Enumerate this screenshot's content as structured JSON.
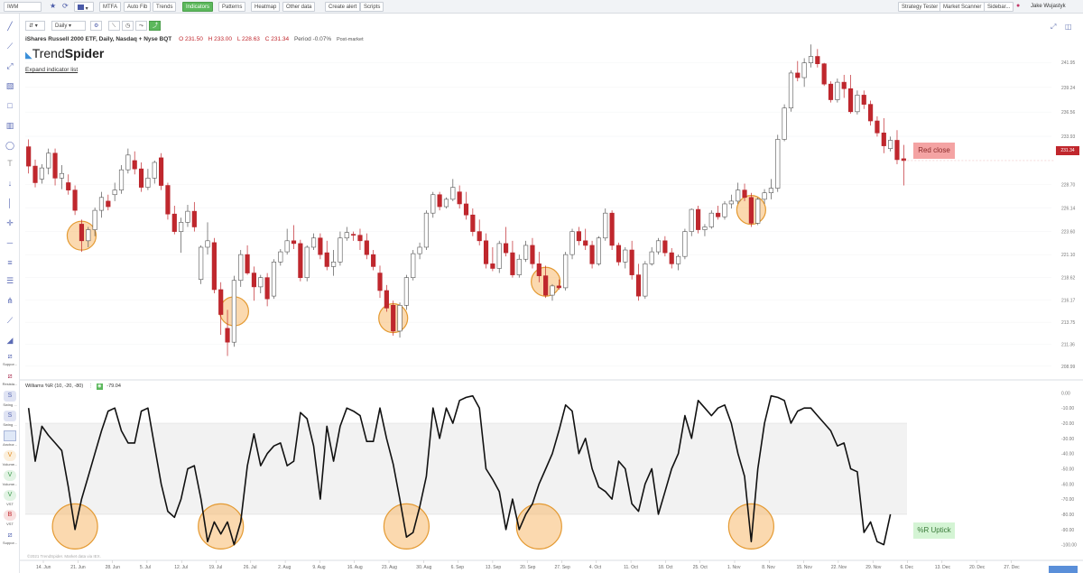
{
  "topbar": {
    "symbol": "IWM",
    "buttons": [
      "MTFA",
      "Auto Fib",
      "Trends",
      "Indicators",
      "Patterns",
      "Heatmap",
      "Other data",
      "Create alert",
      "Scripts"
    ],
    "right_buttons": [
      "Strategy Tester",
      "Market Scanner",
      "Sidebar..."
    ],
    "user": "Jake Wujastyk",
    "accent": "#5cb85c"
  },
  "toolbar": {
    "timeframe": "Daily"
  },
  "chart_header": {
    "title": "iShares Russell 2000 ETF, Daily, Nasdaq + Nyse BQT",
    "open": "O 231.50",
    "high": "H 233.00",
    "low": "L 228.63",
    "close": "C 231.34",
    "period": "Period -0.07%",
    "session": "Post-market",
    "logo_a": "Trend",
    "logo_b": "Spider",
    "expand": "Expand indicator list"
  },
  "indicator": {
    "label": "Williams %R (10, -20, -80)",
    "value": "-79.04"
  },
  "annotations": {
    "price_callout": "Red close",
    "wr_callout": "%R Uptick",
    "last_price": "231.34"
  },
  "watermark": "©2021 TrendSpider. Market data via IEX.",
  "sidebar_labels": [
    "Suppor...",
    "Resista...",
    "Swing ...",
    "Swing ...",
    "Anchor...",
    "Volume...",
    "Volume...",
    "VST",
    "VST",
    "Suppor..."
  ],
  "sidebar_letters": [
    "S",
    "S",
    "V",
    "V",
    "V",
    "B"
  ],
  "chart_data": [
    {
      "type": "candlestick",
      "title": "iShares Russell 2000 ETF, Daily, Nasdaq + Nyse BQT",
      "y_ticks": [
        241.95,
        239.24,
        236.56,
        233.93,
        228.7,
        226.14,
        223.6,
        221.1,
        218.62,
        216.17,
        213.75,
        211.36,
        208.99
      ],
      "x_ticks": [
        "14. Jun",
        "21. Jun",
        "28. Jun",
        "5. Jul",
        "12. Jul",
        "19. Jul",
        "26. Jul",
        "2. Aug",
        "9. Aug",
        "16. Aug",
        "23. Aug",
        "30. Aug",
        "6. Sep",
        "13. Sep",
        "20. Sep",
        "27. Sep",
        "4. Oct",
        "11. Oct",
        "18. Oct",
        "25. Oct",
        "1. Nov",
        "8. Nov",
        "15. Nov",
        "22. Nov",
        "29. Nov",
        "6. Dec",
        "13. Dec",
        "20. Dec",
        "27. Dec"
      ],
      "ylim": [
        207.8,
        245.0
      ],
      "up_color": "#ffffff",
      "down_color": "#c0272d",
      "candles": [
        [
          232.8,
          233.6,
          229.9,
          230.7
        ],
        [
          230.7,
          231.4,
          228.4,
          228.9
        ],
        [
          229.3,
          230.9,
          228.8,
          230.5
        ],
        [
          230.5,
          232.6,
          229.8,
          232.1
        ],
        [
          232.1,
          232.6,
          228.6,
          229.4
        ],
        [
          229.4,
          230.8,
          228.2,
          229.9
        ],
        [
          228.9,
          229.8,
          227.6,
          228.1
        ],
        [
          228.1,
          228.6,
          225.4,
          225.9
        ],
        [
          224.4,
          224.9,
          221.4,
          222.6
        ],
        [
          222.6,
          224.1,
          221.9,
          223.8
        ],
        [
          223.8,
          226.2,
          223.1,
          225.9
        ],
        [
          225.9,
          227.9,
          225.1,
          227.3
        ],
        [
          226.9,
          227.6,
          225.9,
          226.3
        ],
        [
          227.6,
          228.9,
          226.9,
          228.1
        ],
        [
          228.1,
          230.8,
          227.7,
          230.3
        ],
        [
          230.3,
          232.6,
          229.9,
          231.9
        ],
        [
          231.3,
          232.3,
          229.8,
          230.4
        ],
        [
          230.4,
          231.1,
          227.9,
          228.4
        ],
        [
          228.4,
          230.4,
          228.1,
          229.4
        ],
        [
          229.4,
          231.3,
          228.8,
          231.1
        ],
        [
          231.6,
          232.1,
          228.1,
          228.6
        ],
        [
          228.6,
          228.9,
          224.9,
          225.5
        ],
        [
          225.5,
          226.4,
          223.3,
          223.6
        ],
        [
          223.6,
          225.1,
          221.3,
          224.6
        ],
        [
          224.6,
          226.5,
          224.1,
          225.8
        ],
        [
          225.8,
          226.8,
          223.6,
          224.1
        ],
        [
          218.4,
          222.1,
          217.9,
          221.9
        ],
        [
          221.9,
          224.6,
          221.1,
          222.6
        ],
        [
          222.4,
          222.9,
          216.9,
          217.3
        ],
        [
          217.3,
          218.1,
          212.4,
          214.6
        ],
        [
          213.1,
          215.1,
          210.1,
          211.6
        ],
        [
          211.6,
          218.8,
          211.1,
          218.3
        ],
        [
          218.3,
          221.6,
          217.6,
          221.1
        ],
        [
          221.1,
          222.1,
          218.9,
          219.1
        ],
        [
          219.1,
          219.8,
          216.1,
          217.6
        ],
        [
          217.6,
          218.9,
          216.9,
          218.6
        ],
        [
          218.6,
          219.1,
          215.5,
          216.3
        ],
        [
          216.6,
          220.6,
          216.3,
          220.3
        ],
        [
          220.3,
          221.7,
          219.9,
          221.4
        ],
        [
          221.4,
          223.9,
          221.1,
          222.6
        ],
        [
          222.6,
          224.3,
          221.7,
          222.3
        ],
        [
          222.3,
          222.7,
          218.2,
          218.6
        ],
        [
          218.6,
          222.1,
          218.2,
          221.9
        ],
        [
          221.9,
          223.4,
          221.6,
          222.9
        ],
        [
          222.9,
          223.4,
          220.6,
          221.1
        ],
        [
          221.3,
          222.6,
          219.4,
          219.8
        ],
        [
          219.8,
          221.6,
          218.8,
          220.3
        ],
        [
          220.3,
          223.6,
          219.9,
          222.9
        ],
        [
          222.9,
          224.1,
          222.6,
          223.5
        ],
        [
          223.3,
          223.6,
          222.6,
          223.2
        ],
        [
          223.2,
          223.9,
          221.6,
          222.6
        ],
        [
          222.6,
          223.4,
          220.6,
          221.1
        ],
        [
          221.1,
          221.6,
          219.4,
          219.8
        ],
        [
          219.1,
          219.9,
          216.4,
          217.2
        ],
        [
          217.2,
          217.8,
          214.9,
          215.3
        ],
        [
          215.6,
          216.1,
          212.3,
          212.8
        ],
        [
          212.8,
          215.9,
          212.1,
          215.6
        ],
        [
          215.6,
          218.9,
          215.1,
          218.6
        ],
        [
          218.6,
          221.6,
          218.3,
          221.2
        ],
        [
          221.2,
          222.4,
          220.6,
          221.9
        ],
        [
          221.9,
          225.9,
          221.6,
          225.6
        ],
        [
          225.6,
          227.9,
          225.1,
          227.6
        ],
        [
          227.6,
          227.9,
          225.9,
          226.3
        ],
        [
          226.3,
          227.3,
          226.1,
          227.1
        ],
        [
          227.1,
          229.3,
          226.9,
          228.4
        ],
        [
          227.9,
          228.6,
          226.1,
          226.6
        ],
        [
          226.6,
          227.9,
          224.9,
          225.4
        ],
        [
          225.4,
          226.1,
          223.1,
          223.6
        ],
        [
          223.6,
          224.9,
          222.1,
          222.6
        ],
        [
          222.6,
          223.4,
          219.6,
          220.1
        ],
        [
          220.1,
          221.9,
          219.3,
          219.6
        ],
        [
          219.6,
          222.6,
          219.1,
          222.3
        ],
        [
          222.3,
          224.1,
          220.9,
          221.3
        ],
        [
          221.3,
          222.6,
          218.6,
          218.9
        ],
        [
          218.9,
          221.1,
          218.6,
          220.6
        ],
        [
          220.6,
          222.6,
          220.3,
          222.1
        ],
        [
          222.1,
          222.9,
          219.6,
          220.1
        ],
        [
          220.1,
          221.4,
          218.1,
          218.8
        ],
        [
          218.8,
          219.9,
          216.4,
          216.7
        ],
        [
          216.7,
          217.9,
          216.1,
          217.7
        ],
        [
          217.7,
          218.4,
          217.3,
          217.5
        ],
        [
          217.5,
          221.4,
          217.2,
          221.1
        ],
        [
          221.1,
          223.9,
          220.6,
          223.6
        ],
        [
          223.6,
          224.1,
          222.1,
          222.6
        ],
        [
          222.6,
          223.9,
          221.6,
          222.1
        ],
        [
          222.1,
          222.6,
          219.6,
          220.1
        ],
        [
          220.1,
          223.1,
          219.9,
          222.9
        ],
        [
          222.9,
          226.1,
          222.6,
          225.6
        ],
        [
          225.6,
          225.9,
          221.6,
          222.1
        ],
        [
          222.1,
          222.4,
          219.9,
          220.3
        ],
        [
          220.3,
          221.9,
          219.6,
          221.6
        ],
        [
          221.6,
          222.6,
          218.4,
          218.9
        ],
        [
          218.9,
          220.1,
          216.1,
          216.6
        ],
        [
          216.6,
          220.4,
          216.3,
          220.1
        ],
        [
          220.1,
          221.9,
          219.9,
          221.4
        ],
        [
          221.4,
          222.9,
          221.1,
          222.6
        ],
        [
          222.6,
          223.1,
          220.9,
          221.3
        ],
        [
          221.3,
          221.8,
          219.6,
          220.1
        ],
        [
          220.1,
          221.1,
          219.4,
          220.9
        ],
        [
          220.9,
          223.9,
          220.6,
          223.6
        ],
        [
          223.6,
          226.1,
          223.1,
          226.0
        ],
        [
          226.0,
          226.4,
          223.4,
          223.8
        ],
        [
          223.8,
          224.4,
          223.1,
          224.1
        ],
        [
          224.1,
          225.9,
          223.9,
          225.6
        ],
        [
          225.6,
          226.4,
          224.9,
          225.2
        ],
        [
          225.2,
          226.9,
          224.9,
          226.6
        ],
        [
          226.6,
          227.6,
          226.1,
          226.9
        ],
        [
          226.9,
          228.9,
          226.6,
          228.1
        ],
        [
          228.1,
          228.8,
          226.9,
          227.3
        ],
        [
          227.3,
          227.8,
          224.1,
          224.5
        ],
        [
          224.5,
          227.3,
          224.3,
          227.1
        ],
        [
          227.1,
          228.2,
          226.6,
          227.8
        ],
        [
          227.8,
          229.3,
          227.1,
          228.3
        ],
        [
          228.3,
          234.1,
          227.9,
          233.6
        ],
        [
          233.6,
          237.4,
          233.4,
          237.0
        ],
        [
          237.0,
          241.1,
          236.6,
          240.8
        ],
        [
          240.8,
          242.1,
          239.9,
          240.3
        ],
        [
          240.3,
          242.4,
          239.3,
          241.9
        ],
        [
          241.9,
          243.9,
          241.4,
          242.6
        ],
        [
          242.6,
          243.4,
          241.4,
          241.8
        ],
        [
          241.8,
          241.9,
          239.4,
          239.6
        ],
        [
          239.6,
          239.9,
          237.6,
          237.9
        ],
        [
          237.9,
          240.2,
          237.6,
          239.8
        ],
        [
          239.8,
          240.6,
          238.1,
          239.1
        ],
        [
          239.1,
          240.6,
          236.4,
          236.6
        ],
        [
          236.6,
          238.9,
          236.3,
          238.4
        ],
        [
          238.4,
          238.9,
          236.9,
          237.4
        ],
        [
          237.4,
          237.8,
          235.1,
          235.6
        ],
        [
          235.6,
          236.1,
          233.9,
          234.3
        ],
        [
          234.3,
          235.9,
          232.1,
          232.9
        ],
        [
          232.6,
          233.9,
          232.3,
          233.5
        ],
        [
          233.5,
          234.6,
          230.9,
          231.4
        ],
        [
          231.5,
          233.0,
          228.6,
          231.3
        ]
      ]
    },
    {
      "type": "line",
      "title": "Williams %R (10, -20, -80)",
      "y_ticks": [
        0,
        -10,
        -20,
        -30,
        -40,
        -50,
        -60,
        -70,
        -80,
        -90,
        -100
      ],
      "ylim": [
        -105,
        2
      ],
      "overbought": -20,
      "oversold": -80,
      "values": [
        -10,
        -45,
        -22,
        -28,
        -33,
        -38,
        -62,
        -90,
        -70,
        -55,
        -40,
        -25,
        -12,
        -10,
        -25,
        -33,
        -33,
        -12,
        -10,
        -35,
        -60,
        -78,
        -82,
        -70,
        -50,
        -48,
        -70,
        -98,
        -85,
        -93,
        -85,
        -100,
        -85,
        -48,
        -27,
        -48,
        -40,
        -35,
        -33,
        -48,
        -45,
        -13,
        -17,
        -35,
        -70,
        -22,
        -45,
        -22,
        -10,
        -12,
        -15,
        -32,
        -32,
        -10,
        -30,
        -47,
        -70,
        -95,
        -92,
        -75,
        -55,
        -10,
        -30,
        -10,
        -20,
        -5,
        -3,
        -2,
        -10,
        -50,
        -57,
        -65,
        -90,
        -70,
        -90,
        -80,
        -73,
        -60,
        -50,
        -40,
        -25,
        -8,
        -12,
        -40,
        -30,
        -50,
        -62,
        -65,
        -70,
        -45,
        -50,
        -73,
        -78,
        -60,
        -50,
        -80,
        -65,
        -50,
        -40,
        -15,
        -30,
        -5,
        -10,
        -15,
        -10,
        -8,
        -20,
        -40,
        -55,
        -98,
        -50,
        -20,
        -2,
        -3,
        -5,
        -20,
        -12,
        -10,
        -10,
        -15,
        -20,
        -25,
        -35,
        -33,
        -50,
        -52,
        -92,
        -85,
        -98,
        -100,
        -80
      ]
    }
  ]
}
